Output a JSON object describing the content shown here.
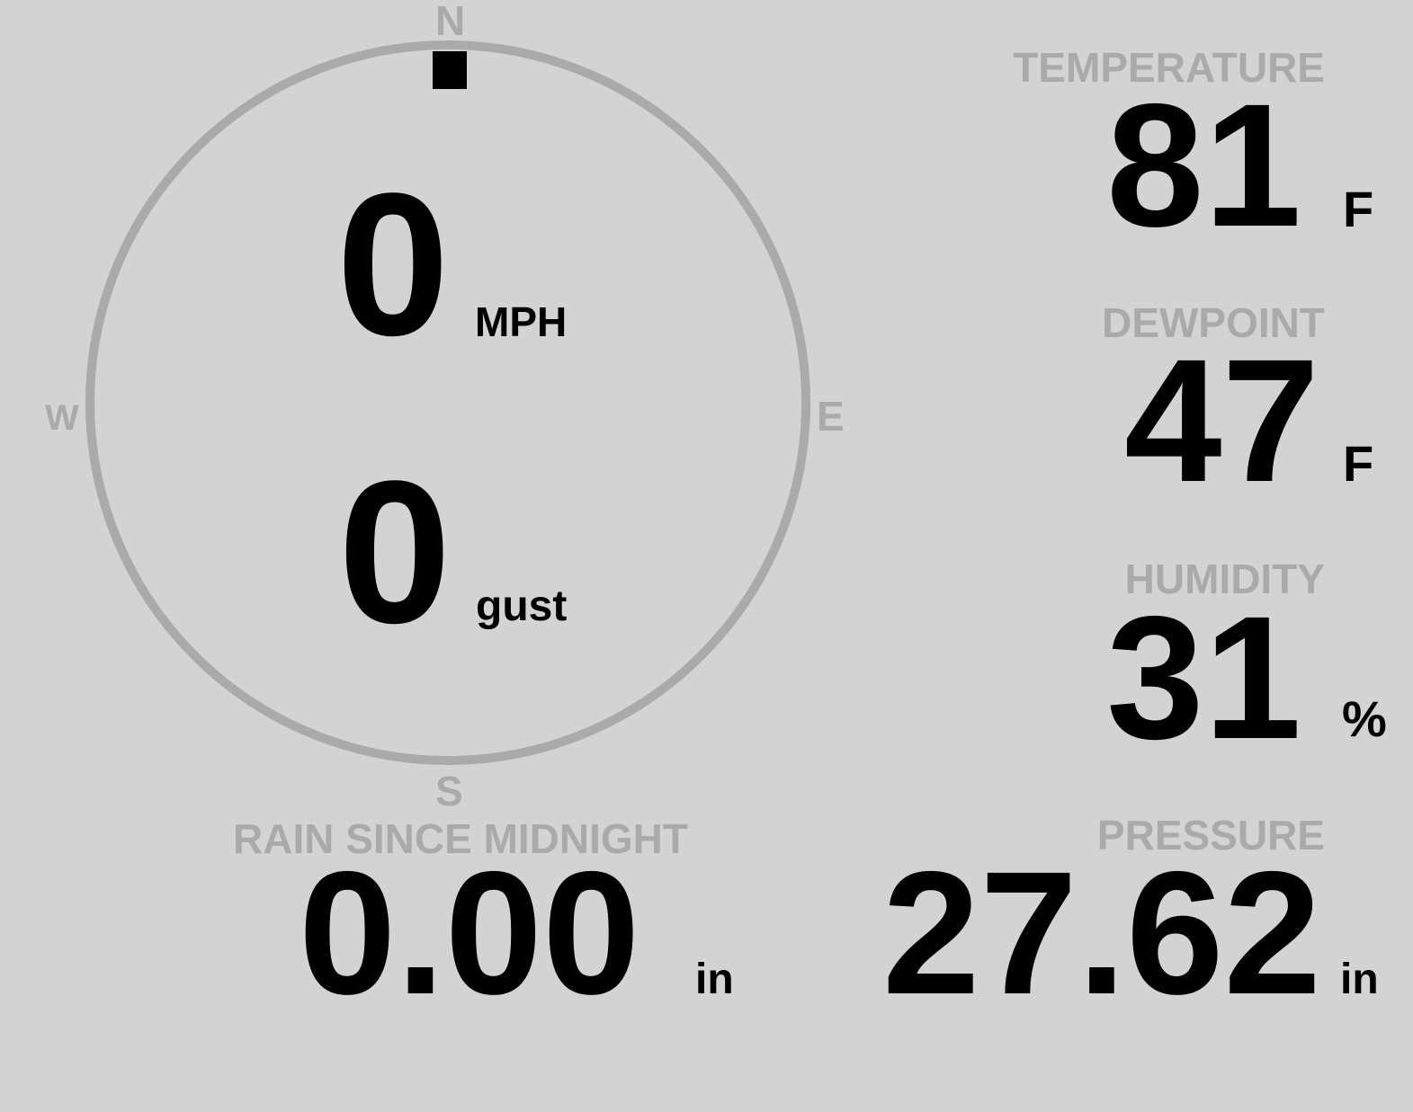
{
  "wind": {
    "speed": "0",
    "speed_unit": "MPH",
    "gust": "0",
    "gust_unit": "gust",
    "direction_deg": 0,
    "compass": {
      "n": "N",
      "e": "E",
      "s": "S",
      "w": "W"
    },
    "ring_color": "#aaaaaa",
    "marker_color": "#000000"
  },
  "temperature": {
    "label": "TEMPERATURE",
    "value": "81",
    "unit": "F"
  },
  "dewpoint": {
    "label": "DEWPOINT",
    "value": "47",
    "unit": "F"
  },
  "humidity": {
    "label": "HUMIDITY",
    "value": "31",
    "unit": "%"
  },
  "rain": {
    "label": "RAIN SINCE MIDNIGHT",
    "value": "0.00",
    "unit": "in"
  },
  "pressure": {
    "label": "PRESSURE",
    "value": "27.62",
    "unit": "in"
  },
  "colors": {
    "background": "#d3d3d3",
    "label": "#aaaaaa",
    "value": "#000000"
  }
}
